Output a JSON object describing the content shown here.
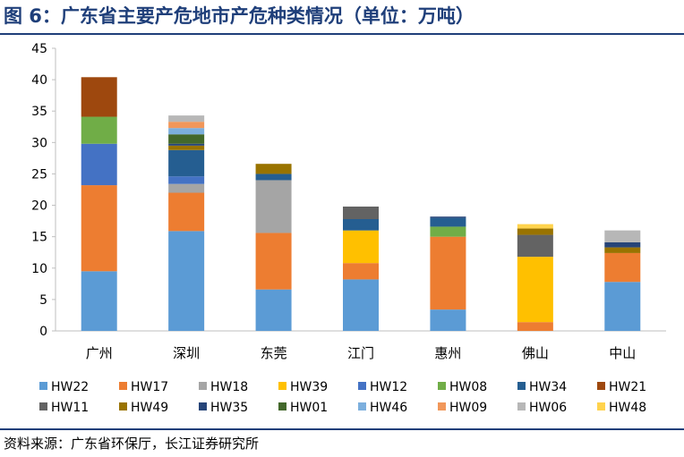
{
  "title": "图 6：广东省主要产危地市产危种类情况（单位：万吨）",
  "source": "资料来源：广东省环保厅，长江证券研究所",
  "chart_data": {
    "type": "bar",
    "stacked": true,
    "categories": [
      "广州",
      "深圳",
      "东莞",
      "江门",
      "惠州",
      "佛山",
      "中山"
    ],
    "ylim": [
      0,
      45
    ],
    "yticks": [
      0,
      5,
      10,
      15,
      20,
      25,
      30,
      35,
      40,
      45
    ],
    "grid": false,
    "legend_position": "bottom",
    "series": [
      {
        "name": "HW22",
        "color": "#5b9bd5",
        "values": [
          9.5,
          15.9,
          6.6,
          8.2,
          3.4,
          0,
          7.8
        ]
      },
      {
        "name": "HW17",
        "color": "#ed7d31",
        "values": [
          13.7,
          6.1,
          9.0,
          2.6,
          11.6,
          1.4,
          4.6
        ]
      },
      {
        "name": "HW18",
        "color": "#a5a5a5",
        "values": [
          0,
          1.4,
          8.4,
          0,
          0,
          0,
          0
        ]
      },
      {
        "name": "HW39",
        "color": "#ffc000",
        "values": [
          0,
          0,
          0,
          5.2,
          0,
          10.4,
          0
        ]
      },
      {
        "name": "HW12",
        "color": "#4472c4",
        "values": [
          6.6,
          1.2,
          0,
          0,
          0,
          0,
          0
        ]
      },
      {
        "name": "HW08",
        "color": "#70ad47",
        "values": [
          4.3,
          0,
          0,
          0,
          1.6,
          0,
          0
        ]
      },
      {
        "name": "HW34",
        "color": "#255e91",
        "values": [
          0,
          4.2,
          1.0,
          1.8,
          1.4,
          0,
          0
        ]
      },
      {
        "name": "HW21",
        "color": "#9e480e",
        "values": [
          6.3,
          0,
          0,
          0,
          0,
          0,
          0
        ]
      },
      {
        "name": "HW11",
        "color": "#636363",
        "values": [
          0,
          0,
          0,
          2.0,
          0,
          3.5,
          0
        ]
      },
      {
        "name": "HW49",
        "color": "#997300",
        "values": [
          0,
          0.7,
          1.6,
          0,
          0,
          1.0,
          0.9
        ]
      },
      {
        "name": "HW35",
        "color": "#264478",
        "values": [
          0,
          0.3,
          0,
          0,
          0.2,
          0,
          0.8
        ]
      },
      {
        "name": "HW01",
        "color": "#43682b",
        "values": [
          0,
          1.5,
          0,
          0,
          0,
          0,
          0
        ]
      },
      {
        "name": "HW46",
        "color": "#7cafdd",
        "values": [
          0,
          1.0,
          0,
          0,
          0,
          0,
          0
        ]
      },
      {
        "name": "HW09",
        "color": "#f1975a",
        "values": [
          0,
          1.0,
          0,
          0,
          0,
          0,
          0
        ]
      },
      {
        "name": "HW06",
        "color": "#b7b7b7",
        "values": [
          0,
          1.0,
          0,
          0,
          0,
          0,
          1.9
        ]
      },
      {
        "name": "HW48",
        "color": "#ffd34d",
        "values": [
          0,
          0,
          0,
          0,
          0,
          0.7,
          0
        ]
      }
    ]
  }
}
